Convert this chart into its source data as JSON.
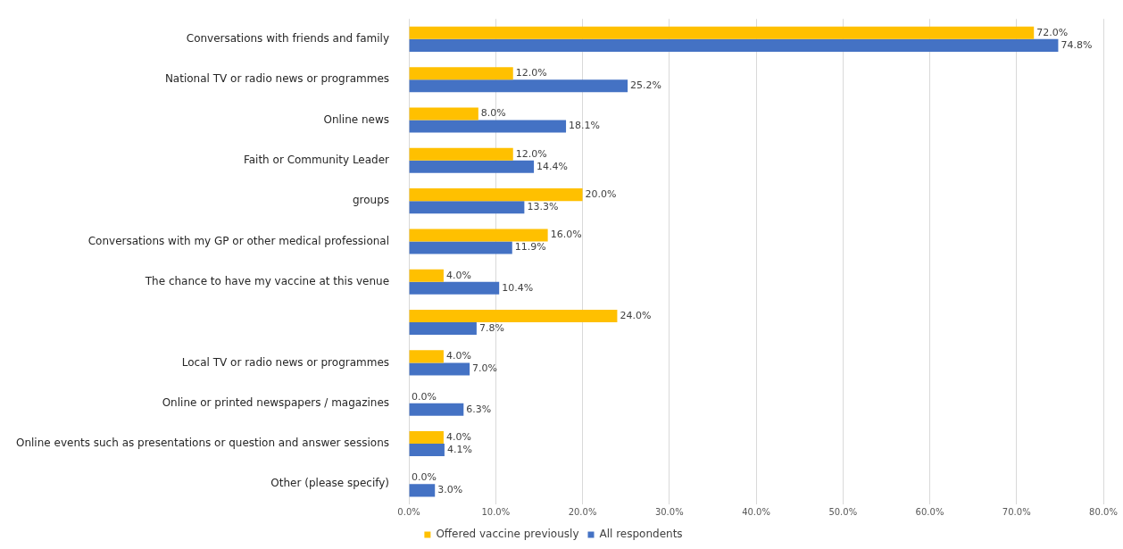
{
  "chart_data": {
    "type": "bar",
    "orientation": "horizontal",
    "categories": [
      "Conversations with friends and family",
      "National TV or radio news or programmes",
      "Online news",
      "Faith or Community Leader",
      "groups",
      "Conversations with my GP or other medical professional",
      "The chance to have my vaccine at this venue",
      null,
      "Local TV or radio news or programmes",
      "Online or printed newspapers / magazines",
      "Online events such as presentations or question and answer sessions",
      "Other (please specify)"
    ],
    "series": [
      {
        "name": "Offered vaccine previously",
        "color": "#ffc000",
        "values": [
          72.0,
          12.0,
          8.0,
          12.0,
          20.0,
          16.0,
          4.0,
          24.0,
          4.0,
          0.0,
          4.0,
          0.0
        ],
        "value_labels": [
          "72.0%",
          "12.0%",
          "8.0%",
          "12.0%",
          "20.0%",
          "16.0%",
          "4.0%",
          "24.0%",
          "4.0%",
          "0.0%",
          "4.0%",
          "0.0%"
        ]
      },
      {
        "name": "All respondents",
        "color": "#4472c4",
        "values": [
          74.8,
          25.2,
          18.1,
          14.4,
          13.3,
          11.9,
          10.4,
          7.8,
          7.0,
          6.3,
          4.1,
          3.0
        ],
        "value_labels": [
          "74.8%",
          "25.2%",
          "18.1%",
          "14.4%",
          "13.3%",
          "11.9%",
          "10.4%",
          "7.8%",
          "7.0%",
          "6.3%",
          "4.1%",
          "3.0%"
        ]
      }
    ],
    "xlim": [
      0,
      80
    ],
    "xticks": [
      {
        "value": 0,
        "label": "0.0%"
      },
      {
        "value": 10,
        "label": "10.0%"
      },
      {
        "value": 20,
        "label": "20.0%"
      },
      {
        "value": 30,
        "label": "30.0%"
      },
      {
        "value": 40,
        "label": "40.0%"
      },
      {
        "value": 50,
        "label": "50.0%"
      },
      {
        "value": 60,
        "label": "60.0%"
      },
      {
        "value": 70,
        "label": "70.0%"
      },
      {
        "value": 80,
        "label": "80.0%"
      }
    ],
    "grid": "x",
    "legend": "bottom"
  }
}
